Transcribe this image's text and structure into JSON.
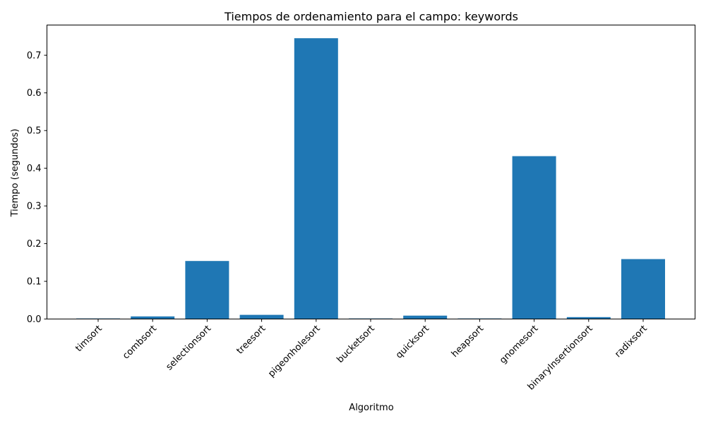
{
  "chart_data": {
    "type": "bar",
    "title": "Tiempos de ordenamiento para el campo: keywords",
    "xlabel": "Algoritmo",
    "ylabel": "Tiempo (segundos)",
    "categories": [
      "timsort",
      "combsort",
      "selectionsort",
      "treesort",
      "pigeonholesort",
      "bucketsort",
      "quicksort",
      "heapsort",
      "gnomesort",
      "binaryInsertionsort",
      "radixsort"
    ],
    "values": [
      0.0015,
      0.007,
      0.154,
      0.011,
      0.745,
      0.0015,
      0.009,
      0.0015,
      0.432,
      0.005,
      0.159
    ],
    "ylim": [
      0,
      0.78
    ],
    "yticks": [
      0.0,
      0.1,
      0.2,
      0.3,
      0.4,
      0.5,
      0.6,
      0.7
    ],
    "ytick_labels": [
      "0.0",
      "0.1",
      "0.2",
      "0.3",
      "0.4",
      "0.5",
      "0.6",
      "0.7"
    ],
    "bar_color": "#1f77b4",
    "grid": false,
    "legend": "none"
  }
}
